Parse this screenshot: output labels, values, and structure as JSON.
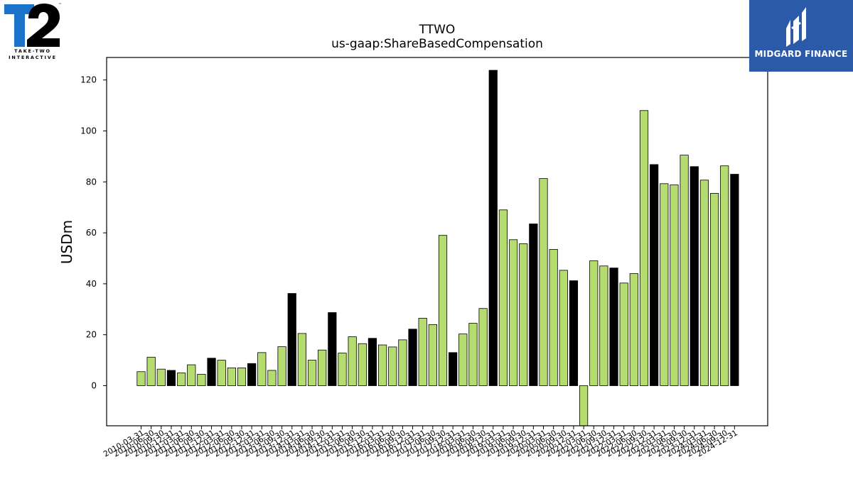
{
  "header": {
    "title": "TTWO",
    "subtitle": "us-gaap:ShareBasedCompensation"
  },
  "logos": {
    "left": {
      "mark": "T2",
      "line1": "TAKE-TWO",
      "line2": "INTERACTIVE",
      "tm": "™"
    },
    "right": {
      "name": "MIDGARD FINANCE",
      "background": "#2b5aa8"
    }
  },
  "colors": {
    "green": "#b5dc6e",
    "black": "#000000"
  },
  "chart_data": {
    "type": "bar",
    "title": "TTWO",
    "subtitle": "us-gaap:ShareBasedCompensation",
    "xlabel": "",
    "ylabel": "USDm",
    "ylim": [
      -16,
      128
    ],
    "yticks": [
      0,
      20,
      40,
      60,
      80,
      100,
      120
    ],
    "grid": false,
    "categories": [
      "2010-03-31",
      "2010-06-30",
      "2010-09-30",
      "2010-12-31",
      "2011-03-31",
      "2011-06-30",
      "2011-09-30",
      "2011-12-31",
      "2012-03-31",
      "2012-06-30",
      "2012-09-30",
      "2012-12-31",
      "2013-03-31",
      "2013-06-30",
      "2013-09-30",
      "2013-12-31",
      "2014-03-31",
      "2014-06-30",
      "2014-09-30",
      "2014-12-31",
      "2015-03-31",
      "2015-06-30",
      "2015-09-30",
      "2015-12-31",
      "2016-03-31",
      "2016-06-30",
      "2016-09-30",
      "2016-12-31",
      "2017-03-31",
      "2017-06-30",
      "2017-09-30",
      "2017-12-31",
      "2018-03-31",
      "2018-06-30",
      "2018-09-30",
      "2018-12-31",
      "2019-03-31",
      "2019-06-30",
      "2019-09-30",
      "2019-12-31",
      "2020-03-31",
      "2020-06-30",
      "2020-09-30",
      "2020-12-31",
      "2021-03-31",
      "2021-06-30",
      "2021-09-30",
      "2021-12-31",
      "2022-03-31",
      "2022-06-30",
      "2022-09-30",
      "2022-12-31",
      "2023-03-31",
      "2023-06-30",
      "2023-09-30",
      "2023-12-31",
      "2024-03-31",
      "2024-06-30",
      "2024-09-30",
      "2024-12-31"
    ],
    "values": [
      5.5,
      11.2,
      6.5,
      6.0,
      5.0,
      8.2,
      4.5,
      10.8,
      10.0,
      7.0,
      7.0,
      8.7,
      13.0,
      6.0,
      15.3,
      36.2,
      20.5,
      10.0,
      14.0,
      28.7,
      12.8,
      19.2,
      16.5,
      18.6,
      16.0,
      15.2,
      18.0,
      22.2,
      26.5,
      24.0,
      59.0,
      13.0,
      20.3,
      24.5,
      30.3,
      123.8,
      69.0,
      57.3,
      55.7,
      63.5,
      81.3,
      53.5,
      45.3,
      41.2,
      -16,
      49.0,
      47.0,
      46.2,
      40.3,
      44.0,
      108.0,
      86.8,
      79.3,
      78.8,
      90.5,
      86.0,
      80.7,
      75.5,
      86.3,
      83.0
    ],
    "bar_colors": [
      "green",
      "green",
      "green",
      "black",
      "green",
      "green",
      "green",
      "black",
      "green",
      "green",
      "green",
      "black",
      "green",
      "green",
      "green",
      "black",
      "green",
      "green",
      "green",
      "black",
      "green",
      "green",
      "green",
      "black",
      "green",
      "green",
      "green",
      "black",
      "green",
      "green",
      "green",
      "black",
      "green",
      "green",
      "green",
      "black",
      "green",
      "green",
      "green",
      "black",
      "green",
      "green",
      "green",
      "black",
      "green",
      "green",
      "green",
      "black",
      "green",
      "green",
      "green",
      "black",
      "green",
      "green",
      "green",
      "black",
      "green",
      "green",
      "green",
      "black"
    ]
  }
}
